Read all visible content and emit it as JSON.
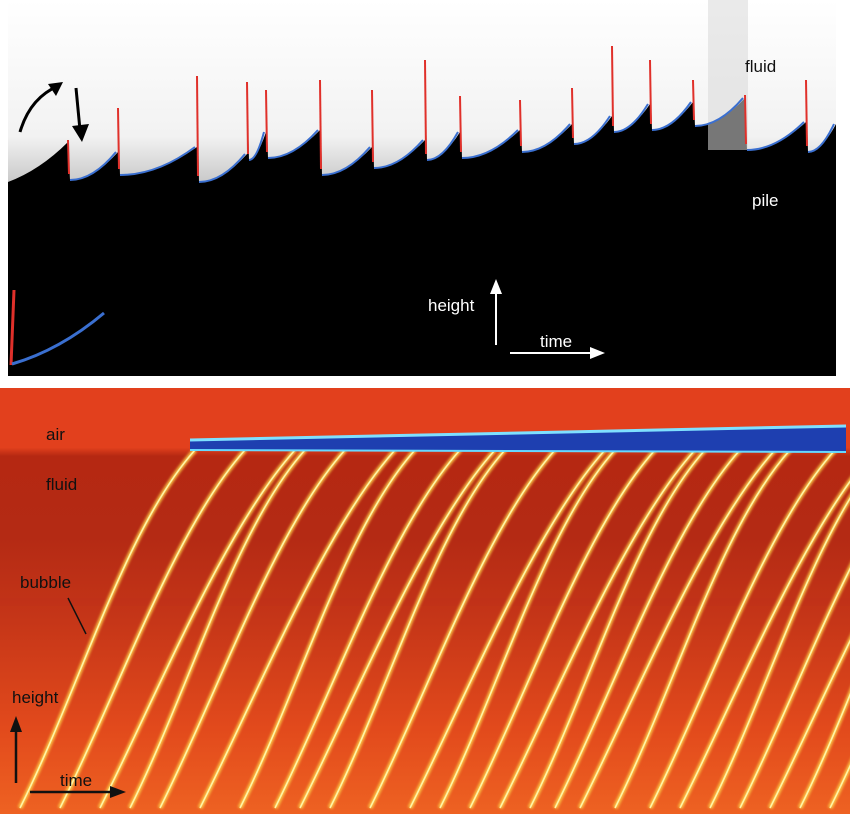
{
  "top_panel": {
    "labels": {
      "fluid": "fluid",
      "pile": "pile",
      "height": "height",
      "time": "time"
    },
    "colors": {
      "background": "#000000",
      "fluid": "#ffffff",
      "red_line": "#e0302a",
      "blue_curve": "#3a6fd0",
      "arrow": "#000000",
      "axis_arrow": "#ffffff"
    },
    "icons": [
      "curved-arrow-icon",
      "down-arrow-icon",
      "up-arrow-icon",
      "right-arrow-icon"
    ]
  },
  "bottom_panel": {
    "labels": {
      "air": "air",
      "fluid": "fluid",
      "bubble": "bubble",
      "height": "height",
      "time": "time"
    },
    "colors": {
      "air": "#e2401d",
      "fluid_band": "#b52812",
      "lower_fluid": "#e5511e",
      "streak": "#ffd24a",
      "streak_core": "#fff4a8",
      "surface": "#1e3fb0",
      "surface_edge": "#7fe0ff",
      "label": "#111111"
    },
    "icons": [
      "up-arrow-icon",
      "right-arrow-icon"
    ]
  }
}
